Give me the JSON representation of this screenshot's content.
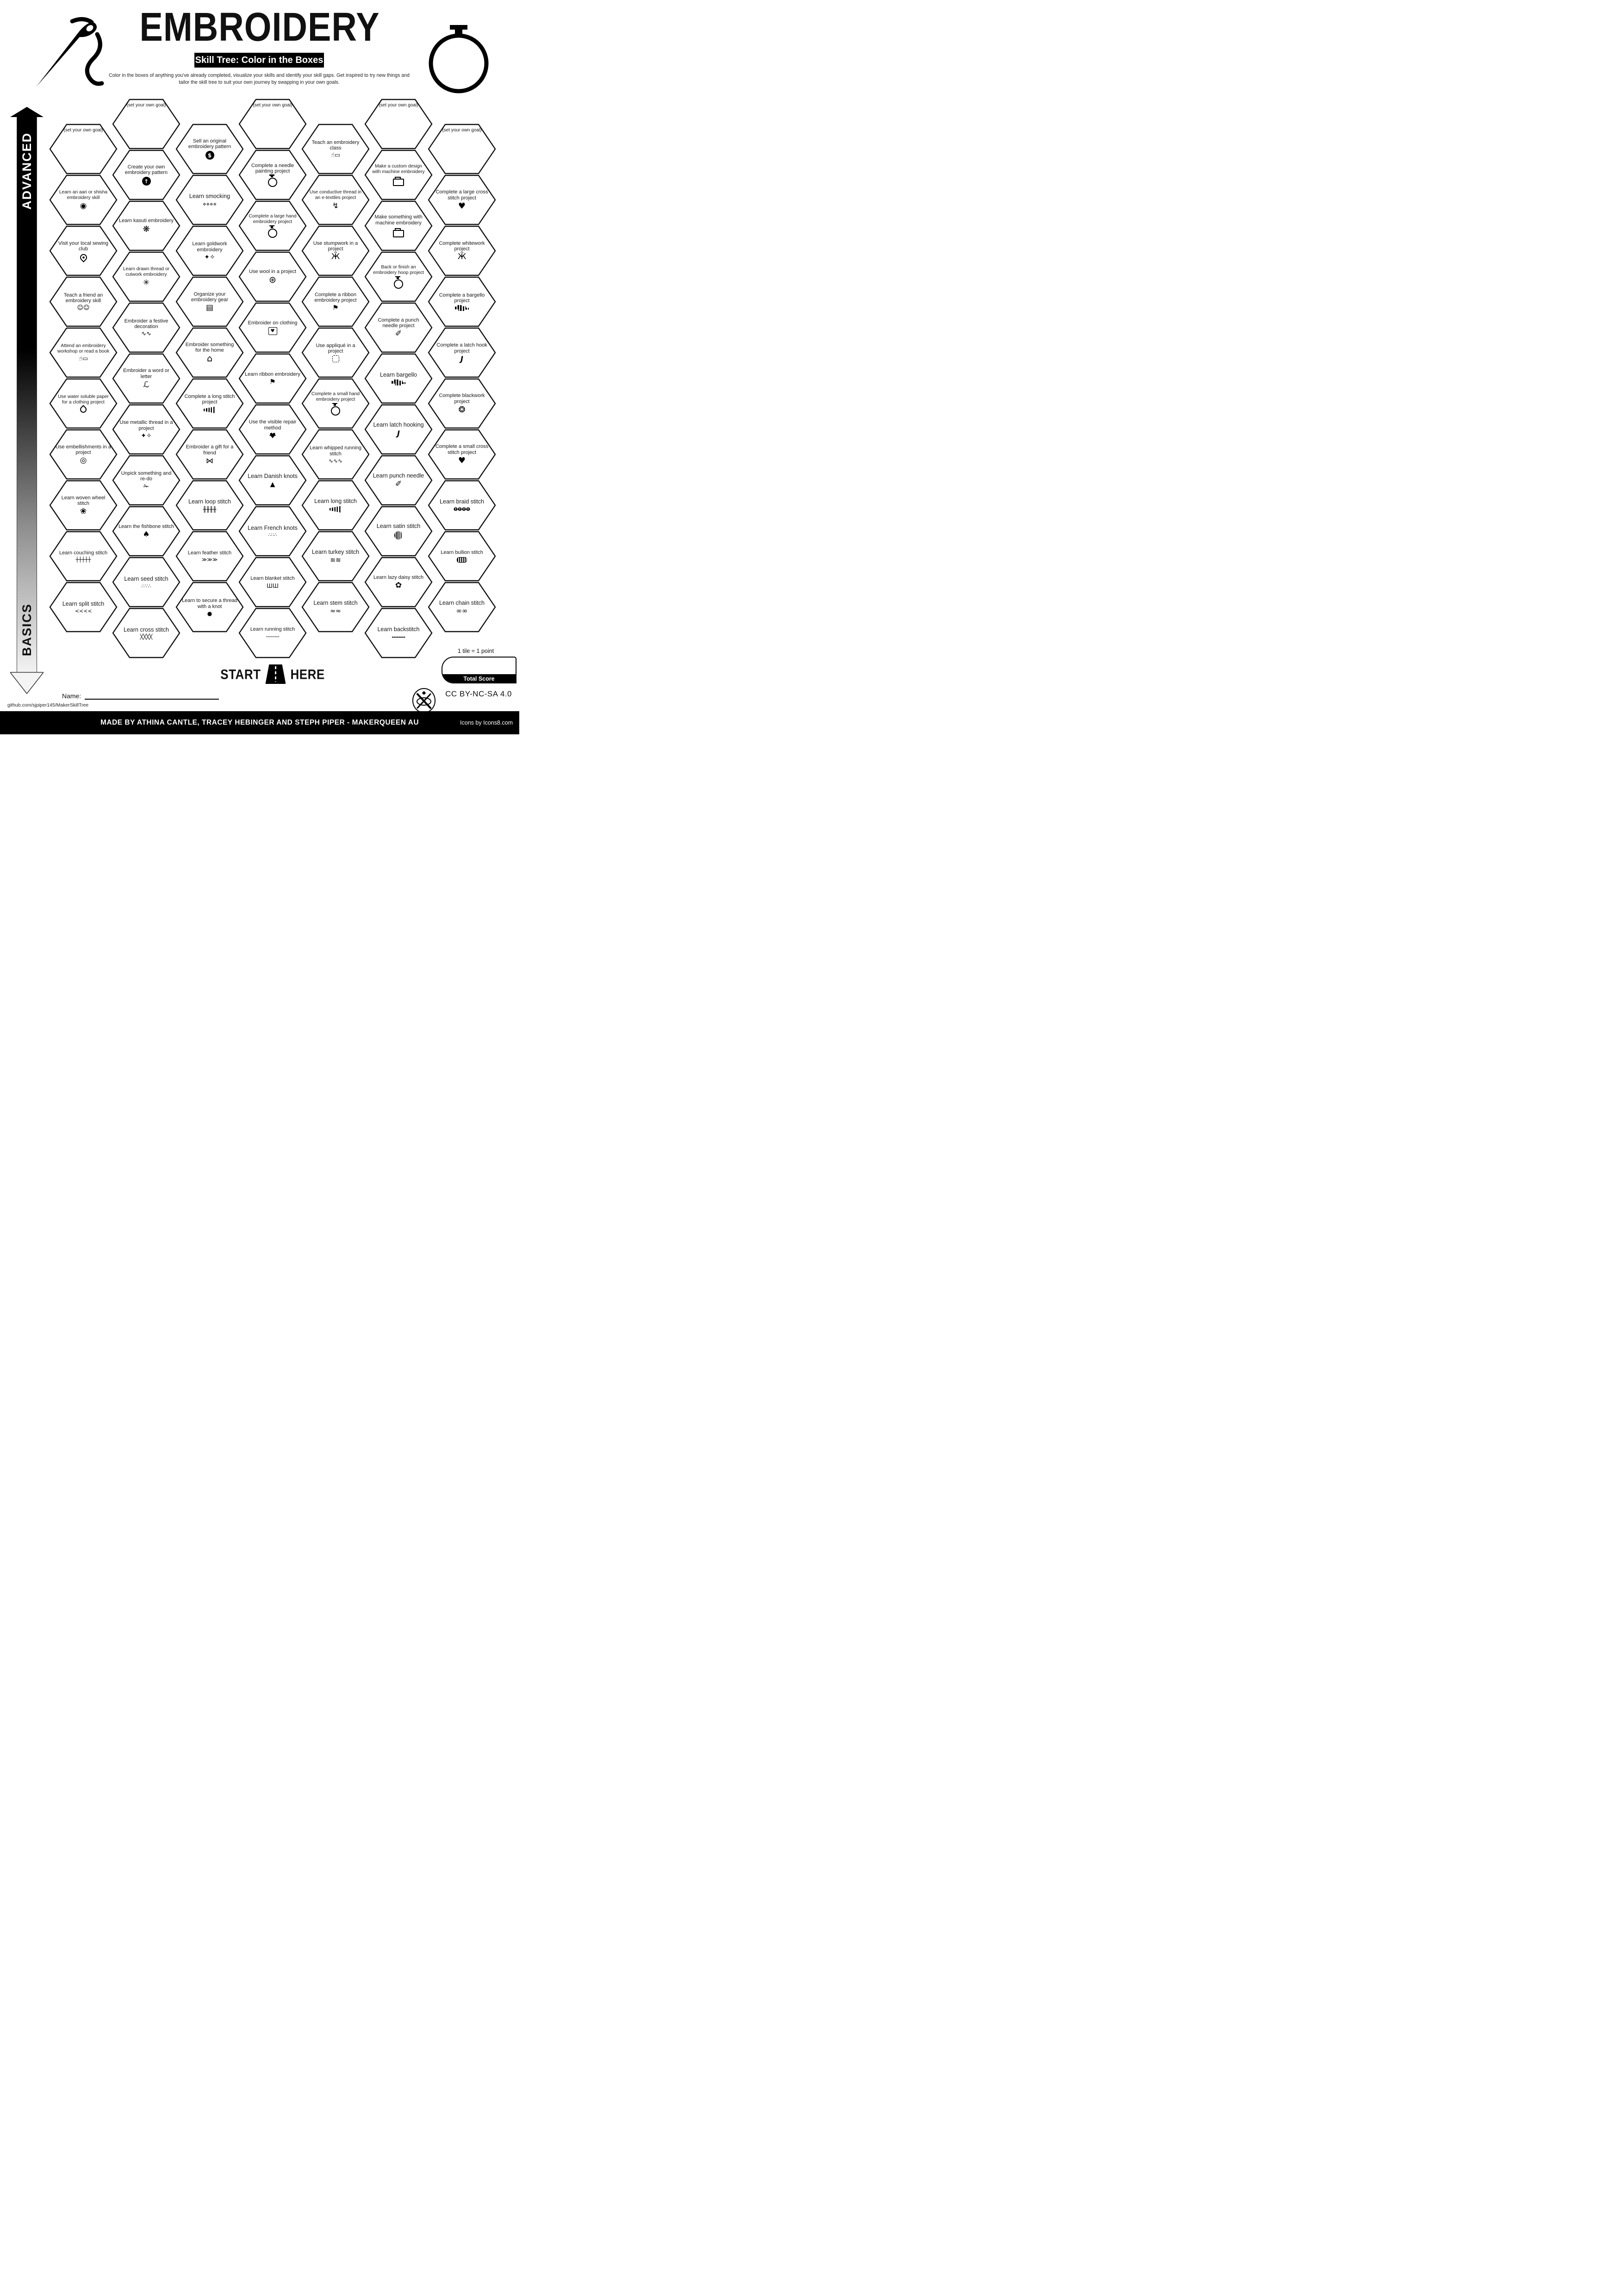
{
  "header": {
    "title": "EMBROIDERY",
    "badge": "Skill Tree: Color in the Boxes",
    "description": "Color in the boxes of anything you've already completed, visualize your skills and identify your skill gaps.  Get inspired to try new things and tailor the skill tree to suit your own journey by swapping in your own goals."
  },
  "axis": {
    "top_label": "ADVANCED",
    "bottom_label": "BASICS"
  },
  "start": {
    "left": "START",
    "right": "HERE"
  },
  "name_field": {
    "label": "Name:"
  },
  "score": {
    "note": "1 tile = 1 point",
    "label": "Total Score"
  },
  "footer": {
    "url": "github.com/sjpiper145/MakerSkillTree",
    "credit": "MADE BY ATHINA CANTLE, TRACEY HEBINGER AND STEPH PIPER  -  MAKERQUEEN AU",
    "license": "CC BY-NC-SA 4.0",
    "icons_credit": "Icons by Icons8.com"
  },
  "colors": {
    "ink": "#000000",
    "paper": "#ffffff"
  },
  "tiles": [
    {
      "col": 0,
      "row": 0,
      "label": "(set your own goal)",
      "icon": "goal"
    },
    {
      "col": 0,
      "row": 1,
      "label": "Learn an aari or shisha embroidery skill",
      "icon": "seal-badge"
    },
    {
      "col": 0,
      "row": 2,
      "label": "Visit your local sewing club",
      "icon": "location-pin"
    },
    {
      "col": 0,
      "row": 3,
      "label": "Teach a friend an embroidery skill",
      "icon": "two-people"
    },
    {
      "col": 0,
      "row": 4,
      "label": "Attend an embroidery workshop or read a book",
      "icon": "person-at-board"
    },
    {
      "col": 0,
      "row": 5,
      "label": "Use water soluble paper for a clothing project",
      "icon": "water-droplet"
    },
    {
      "col": 0,
      "row": 6,
      "label": "Use embellishments in a project",
      "icon": "button"
    },
    {
      "col": 0,
      "row": 7,
      "label": "Learn woven wheel stitch",
      "icon": "rose-spiral"
    },
    {
      "col": 0,
      "row": 8,
      "label": "Learn couching stitch",
      "icon": "couching-line"
    },
    {
      "col": 0,
      "row": 9,
      "label": "Learn split stitch",
      "icon": "split-chain"
    },
    {
      "col": 1,
      "row": 0,
      "label": "(set your own goal)",
      "icon": "goal"
    },
    {
      "col": 1,
      "row": 1,
      "label": "Create your own embroidery pattern",
      "icon": "up-arrow-badge"
    },
    {
      "col": 1,
      "row": 2,
      "label": "Learn kasuti embroidery",
      "icon": "kasuti-star"
    },
    {
      "col": 1,
      "row": 3,
      "label": "Learn drawn thread or cutwork embroidery",
      "icon": "cutwork-star"
    },
    {
      "col": 1,
      "row": 4,
      "label": "Embroider a festive decoration",
      "icon": "festive-swirl"
    },
    {
      "col": 1,
      "row": 5,
      "label": "Embroider a word or letter",
      "icon": "script-letter"
    },
    {
      "col": 1,
      "row": 6,
      "label": "Use metallic thread in a project",
      "icon": "needle-sparkles"
    },
    {
      "col": 1,
      "row": 7,
      "label": "Unpick something and re-do",
      "icon": "safety-pin"
    },
    {
      "col": 1,
      "row": 8,
      "label": "Learn the fishbone stitch",
      "icon": "pinecone"
    },
    {
      "col": 1,
      "row": 9,
      "label": "Learn seed stitch",
      "icon": "seed-scatter"
    },
    {
      "col": 1,
      "row": 10,
      "label": "Learn cross stitch",
      "icon": "cross-row"
    },
    {
      "col": 2,
      "row": 0,
      "label": "Sell an original embroidery pattern",
      "icon": "dollar-badge"
    },
    {
      "col": 2,
      "row": 1,
      "label": "Learn smocking",
      "icon": "smocking-lattice"
    },
    {
      "col": 2,
      "row": 2,
      "label": "Learn goldwork embroidery",
      "icon": "needle-sparkles"
    },
    {
      "col": 2,
      "row": 3,
      "label": "Organize your embroidery gear",
      "icon": "drawer-unit"
    },
    {
      "col": 2,
      "row": 4,
      "label": "Embroider something for the home",
      "icon": "house"
    },
    {
      "col": 2,
      "row": 5,
      "label": "Complete a long stitch project",
      "icon": "long-stitch-bars"
    },
    {
      "col": 2,
      "row": 6,
      "label": "Embroider a gift for a friend",
      "icon": "gift-bow"
    },
    {
      "col": 2,
      "row": 7,
      "label": "Learn loop stitch",
      "icon": "loop-row"
    },
    {
      "col": 2,
      "row": 8,
      "label": "Learn feather stitch",
      "icon": "feather-chevrons"
    },
    {
      "col": 2,
      "row": 9,
      "label": "Learn to secure a thread with a knot",
      "icon": "knot-dot"
    },
    {
      "col": 3,
      "row": 0,
      "label": "(set your own goal)",
      "icon": "goal"
    },
    {
      "col": 3,
      "row": 1,
      "label": "Complete a needle painting project",
      "icon": "embroidery-hoop"
    },
    {
      "col": 3,
      "row": 2,
      "label": "Complete a large hand embroidery project",
      "icon": "embroidery-hoop"
    },
    {
      "col": 3,
      "row": 3,
      "label": "Use wool in a project",
      "icon": "yarn-ball"
    },
    {
      "col": 3,
      "row": 4,
      "label": "Embroider on clothing",
      "icon": "tshirt-heart"
    },
    {
      "col": 3,
      "row": 5,
      "label": "Learn ribbon embroidery",
      "icon": "ribbon-bookmark"
    },
    {
      "col": 3,
      "row": 6,
      "label": "Use the visible repair method",
      "icon": "mended-heart"
    },
    {
      "col": 3,
      "row": 7,
      "label": "Learn Danish knots",
      "icon": "triangle-knot"
    },
    {
      "col": 3,
      "row": 8,
      "label": "Learn French knots",
      "icon": "knot-heart"
    },
    {
      "col": 3,
      "row": 9,
      "label": "Learn blanket stitch",
      "icon": "blanket-arc"
    },
    {
      "col": 3,
      "row": 10,
      "label": "Learn running stitch",
      "icon": "running-dashes"
    },
    {
      "col": 4,
      "row": 0,
      "label": "Teach an embroidery class",
      "icon": "person-at-board"
    },
    {
      "col": 4,
      "row": 1,
      "label": "Use conductive thread in an e-textiles project",
      "icon": "led-bolt"
    },
    {
      "col": 4,
      "row": 2,
      "label": "Use stumpwork in a project",
      "icon": "bee"
    },
    {
      "col": 4,
      "row": 3,
      "label": "Complete a ribbon embroidery project",
      "icon": "ribbon-bookmark"
    },
    {
      "col": 4,
      "row": 4,
      "label": "Use appliqué in a project",
      "icon": "applique-patch"
    },
    {
      "col": 4,
      "row": 5,
      "label": "Complete a small hand embroidery project",
      "icon": "embroidery-hoop"
    },
    {
      "col": 4,
      "row": 6,
      "label": "Learn whipped running stitch",
      "icon": "wavy-line"
    },
    {
      "col": 4,
      "row": 7,
      "label": "Learn long stitch",
      "icon": "long-stitch-bars"
    },
    {
      "col": 4,
      "row": 8,
      "label": "Learn turkey stitch",
      "icon": "turkey-scribble"
    },
    {
      "col": 4,
      "row": 9,
      "label": "Learn stem stitch",
      "icon": "stem-arc"
    },
    {
      "col": 5,
      "row": 0,
      "label": "(set your own goal)",
      "icon": "goal"
    },
    {
      "col": 5,
      "row": 1,
      "label": "Make a custom design with  machine embroidery",
      "icon": "sewing-machine"
    },
    {
      "col": 5,
      "row": 2,
      "label": "Make something with machine embroidery",
      "icon": "sewing-machine"
    },
    {
      "col": 5,
      "row": 3,
      "label": "Back or finish an embroidery hoop project",
      "icon": "embroidery-hoop"
    },
    {
      "col": 5,
      "row": 4,
      "label": "Complete a punch needle project",
      "icon": "punch-needle-tool"
    },
    {
      "col": 5,
      "row": 5,
      "label": "Learn bargello",
      "icon": "bargello-blocks"
    },
    {
      "col": 5,
      "row": 6,
      "label": "Learn latch hooking",
      "icon": "latch-hook"
    },
    {
      "col": 5,
      "row": 7,
      "label": "Learn punch needle",
      "icon": "punch-needle-tool"
    },
    {
      "col": 5,
      "row": 8,
      "label": "Learn satin stitch",
      "icon": "satin-circle"
    },
    {
      "col": 5,
      "row": 9,
      "label": "Learn lazy daisy stitch",
      "icon": "lazy-daisy"
    },
    {
      "col": 5,
      "row": 10,
      "label": "Learn backstitch",
      "icon": "backstitch-dashes"
    },
    {
      "col": 6,
      "row": 0,
      "label": "(set your own goal)",
      "icon": "goal"
    },
    {
      "col": 6,
      "row": 1,
      "label": "Complete a large cross stitch project",
      "icon": "cross-stitch-heart"
    },
    {
      "col": 6,
      "row": 2,
      "label": "Complete whitework project",
      "icon": "bee"
    },
    {
      "col": 6,
      "row": 3,
      "label": "Complete a bargello project",
      "icon": "bargello-blocks"
    },
    {
      "col": 6,
      "row": 4,
      "label": "Complete a latch hook project",
      "icon": "latch-hook"
    },
    {
      "col": 6,
      "row": 5,
      "label": "Complete blackwork project",
      "icon": "blackwork-star"
    },
    {
      "col": 6,
      "row": 6,
      "label": "Complete a small cross stitch project",
      "icon": "cross-stitch-heart"
    },
    {
      "col": 6,
      "row": 7,
      "label": "Learn braid stitch",
      "icon": "braid-loops"
    },
    {
      "col": 6,
      "row": 8,
      "label": "Learn bullion stitch",
      "icon": "bullion-coil"
    },
    {
      "col": 6,
      "row": 9,
      "label": "Learn chain stitch",
      "icon": "chain-loops"
    }
  ]
}
